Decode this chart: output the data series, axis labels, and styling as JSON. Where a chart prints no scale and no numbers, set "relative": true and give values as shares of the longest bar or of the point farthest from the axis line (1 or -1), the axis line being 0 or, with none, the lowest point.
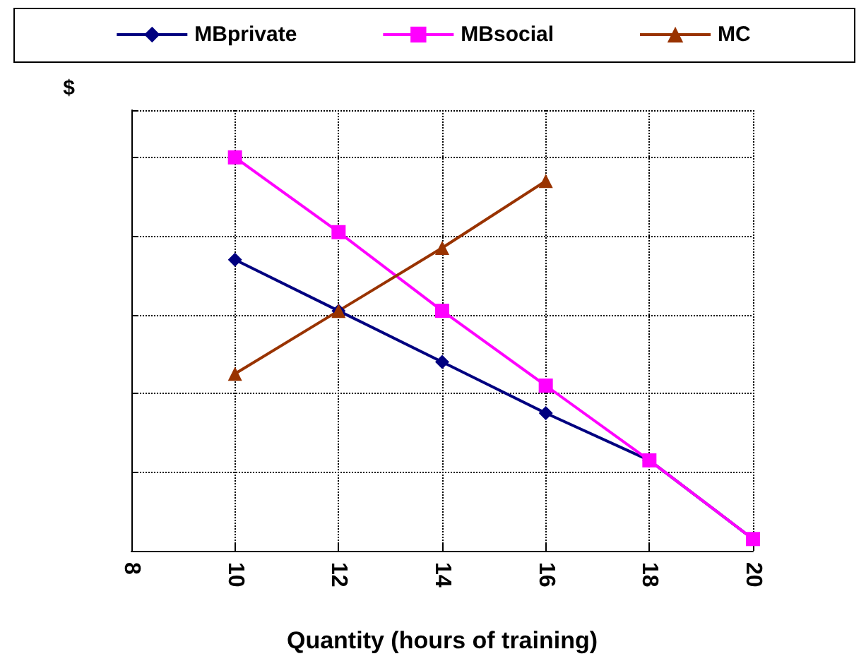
{
  "chart_data": {
    "type": "line",
    "relative": true,
    "xlabel": "Quantity (hours of training)",
    "ylabel": "$",
    "x": [
      10,
      12,
      14,
      16,
      18,
      20
    ],
    "xlim": [
      8,
      20
    ],
    "xticks": [
      8,
      10,
      12,
      14,
      16,
      18,
      20
    ],
    "grid": true,
    "legend": "top",
    "series": [
      {
        "name": "MBprivate",
        "color": "#000080",
        "marker": "diamond",
        "values": [
          0.74,
          0.61,
          0.48,
          0.35,
          0.23,
          0.03
        ]
      },
      {
        "name": "MBsocial",
        "color": "#ff00ff",
        "marker": "square",
        "values": [
          1,
          0.81,
          0.61,
          0.42,
          0.23,
          0.03
        ]
      },
      {
        "name": "MC",
        "color": "#993300",
        "marker": "triangle",
        "values": [
          0.45,
          0.61,
          0.77,
          0.94,
          null,
          null
        ]
      }
    ]
  }
}
